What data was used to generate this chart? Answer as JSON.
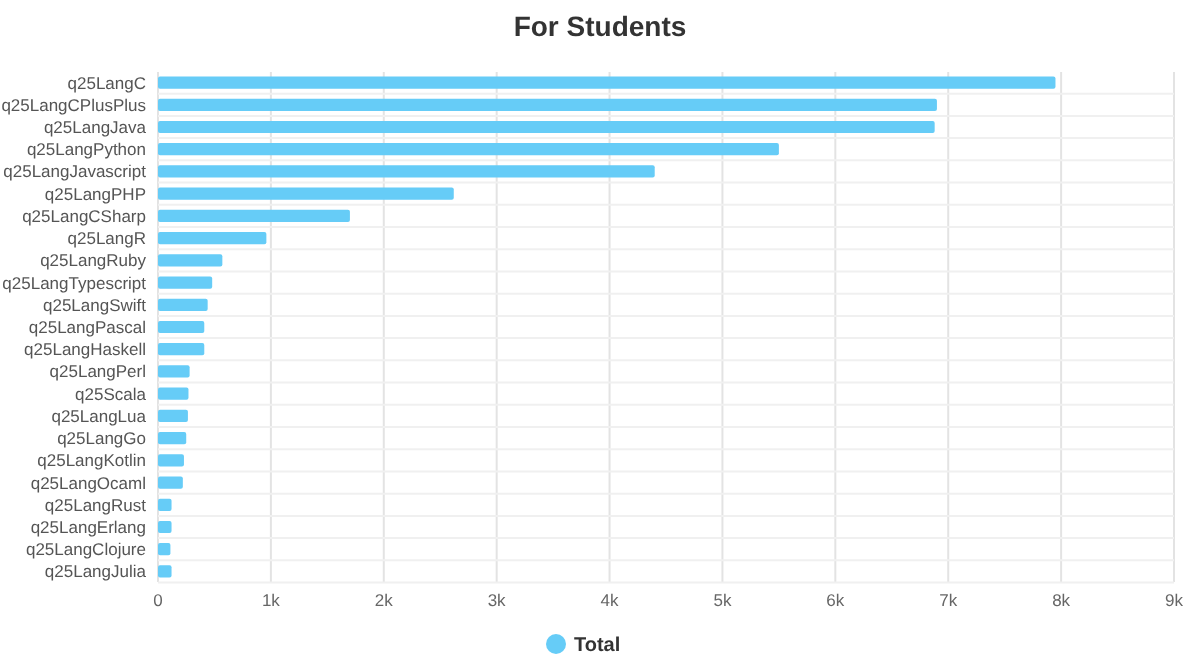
{
  "chart_data": {
    "type": "bar",
    "orientation": "horizontal",
    "title": "For Students",
    "categories": [
      "q25LangC",
      "q25LangCPlusPlus",
      "q25LangJava",
      "q25LangPython",
      "q25LangJavascript",
      "q25LangPHP",
      "q25LangCSharp",
      "q25LangR",
      "q25LangRuby",
      "q25LangTypescript",
      "q25LangSwift",
      "q25LangPascal",
      "q25LangHaskell",
      "q25LangPerl",
      "q25Scala",
      "q25LangLua",
      "q25LangGo",
      "q25LangKotlin",
      "q25LangOcaml",
      "q25LangRust",
      "q25LangErlang",
      "q25LangClojure",
      "q25LangJulia"
    ],
    "series": [
      {
        "name": "Total",
        "color": "#66ccf7",
        "values": [
          7950,
          6900,
          6880,
          5500,
          4400,
          2620,
          1700,
          960,
          570,
          480,
          440,
          410,
          410,
          280,
          270,
          265,
          250,
          230,
          220,
          120,
          120,
          110,
          120
        ]
      }
    ],
    "xlim": [
      0,
      9000
    ],
    "xticks": [
      0,
      {
        "value": 1000,
        "label": "1k"
      },
      {
        "value": 2000,
        "label": "2k"
      },
      {
        "value": 3000,
        "label": "3k"
      },
      {
        "value": 4000,
        "label": "4k"
      },
      {
        "value": 5000,
        "label": "5k"
      },
      {
        "value": 6000,
        "label": "6k"
      },
      {
        "value": 7000,
        "label": "7k"
      },
      {
        "value": 8000,
        "label": "8k"
      },
      {
        "value": 9000,
        "label": "9k"
      }
    ],
    "grid": true,
    "legend": "bottom"
  }
}
